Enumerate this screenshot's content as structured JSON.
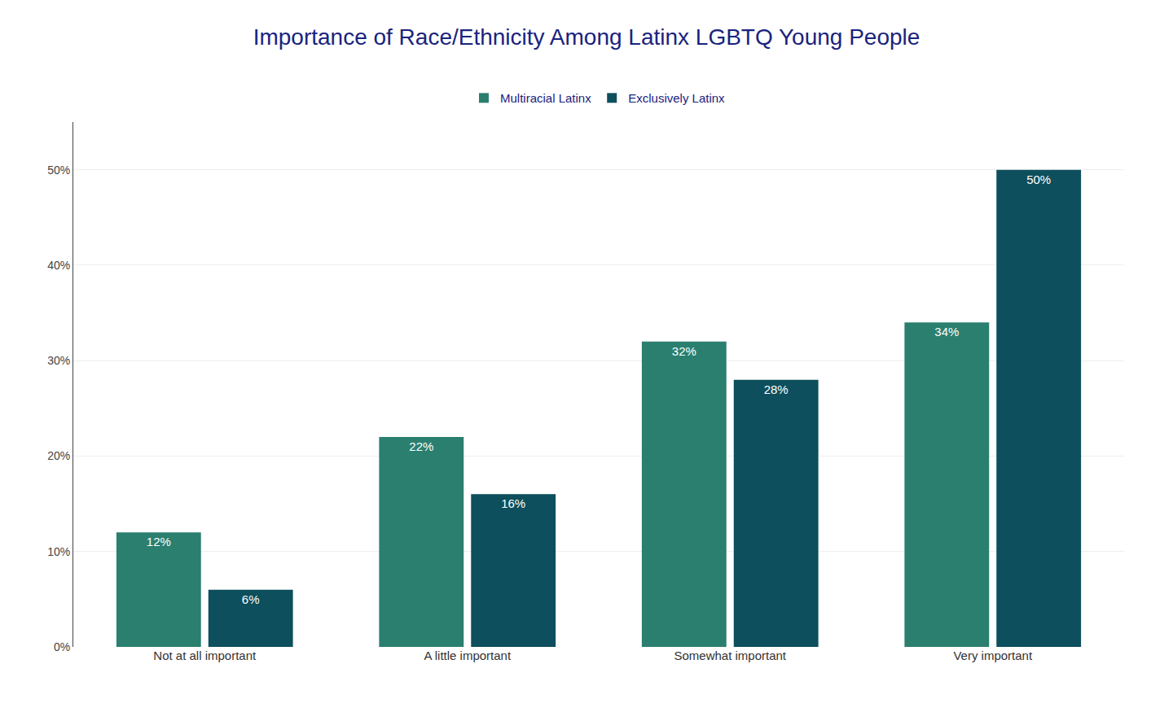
{
  "chart_data": {
    "type": "bar",
    "title": "Importance of Race/Ethnicity Among Latinx LGBTQ Young People",
    "categories": [
      "Not at all important",
      "A little important",
      "Somewhat important",
      "Very important"
    ],
    "series": [
      {
        "name": "Multiracial Latinx",
        "color": "#2a7f6f",
        "values": [
          12,
          22,
          32,
          34
        ],
        "value_labels": [
          "12%",
          "22%",
          "32%",
          "34%"
        ]
      },
      {
        "name": "Exclusively Latinx",
        "color": "#0d4f5c",
        "values": [
          6,
          16,
          28,
          50
        ],
        "value_labels": [
          "6%",
          "16%",
          "28%",
          "50%"
        ]
      }
    ],
    "ylim": [
      0,
      55
    ],
    "yticks": [
      {
        "value": 0,
        "label": "0%"
      },
      {
        "value": 10,
        "label": "10%"
      },
      {
        "value": 20,
        "label": "20%"
      },
      {
        "value": 30,
        "label": "30%"
      },
      {
        "value": 40,
        "label": "40%"
      },
      {
        "value": 50,
        "label": "50%"
      }
    ],
    "grid": true,
    "legend": "top",
    "data_labels": true
  }
}
